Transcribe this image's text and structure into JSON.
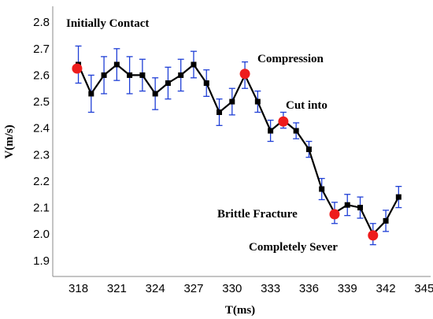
{
  "chart_data": {
    "type": "line",
    "xlabel": "T(ms)",
    "ylabel": "V(m/s)",
    "xlim": [
      316,
      345.5
    ],
    "ylim": [
      1.84,
      2.86
    ],
    "x_ticks": [
      318,
      321,
      324,
      327,
      330,
      333,
      336,
      339,
      342,
      345
    ],
    "y_ticks": [
      1.9,
      2.0,
      2.1,
      2.2,
      2.3,
      2.4,
      2.5,
      2.6,
      2.7,
      2.8
    ],
    "x_tick_labels": [
      "318",
      "321",
      "324",
      "327",
      "330",
      "333",
      "336",
      "339",
      "342",
      "345"
    ],
    "y_tick_labels": [
      "1.9",
      "2.0",
      "2.1",
      "2.2",
      "2.3",
      "2.4",
      "2.5",
      "2.6",
      "2.7",
      "2.8"
    ],
    "grid": false,
    "colors": {
      "line": "#000000",
      "marker": "#000000",
      "error_bar": "#1f3fd6",
      "highlight": "#ee1c1c",
      "axis": "#888888"
    },
    "series": [
      {
        "x": [
          318,
          319,
          320,
          321,
          322,
          323,
          324,
          325,
          326,
          327,
          328,
          329,
          330,
          331,
          332,
          333,
          334,
          335,
          336,
          337,
          338,
          339,
          340,
          341,
          342,
          343
        ],
        "y": [
          2.64,
          2.53,
          2.6,
          2.64,
          2.6,
          2.6,
          2.53,
          2.57,
          2.6,
          2.64,
          2.57,
          2.46,
          2.5,
          2.6,
          2.5,
          2.39,
          2.43,
          2.39,
          2.32,
          2.17,
          2.08,
          2.11,
          2.1,
          2.0,
          2.05,
          2.14
        ],
        "error": [
          0.07,
          0.07,
          0.07,
          0.06,
          0.07,
          0.06,
          0.06,
          0.06,
          0.06,
          0.05,
          0.05,
          0.05,
          0.05,
          0.05,
          0.04,
          0.04,
          0.03,
          0.03,
          0.03,
          0.04,
          0.04,
          0.04,
          0.04,
          0.04,
          0.04,
          0.04
        ]
      }
    ],
    "highlights": [
      {
        "label": "Initially Contact",
        "x": 317.9,
        "y": 2.625
      },
      {
        "label": "Compression",
        "x": 331,
        "y": 2.605
      },
      {
        "label": "Cut into",
        "x": 334,
        "y": 2.425
      },
      {
        "label": "Brittle Fracture",
        "x": 338,
        "y": 2.075
      },
      {
        "label": "Completely Sever",
        "x": 341,
        "y": 1.995
      }
    ]
  }
}
